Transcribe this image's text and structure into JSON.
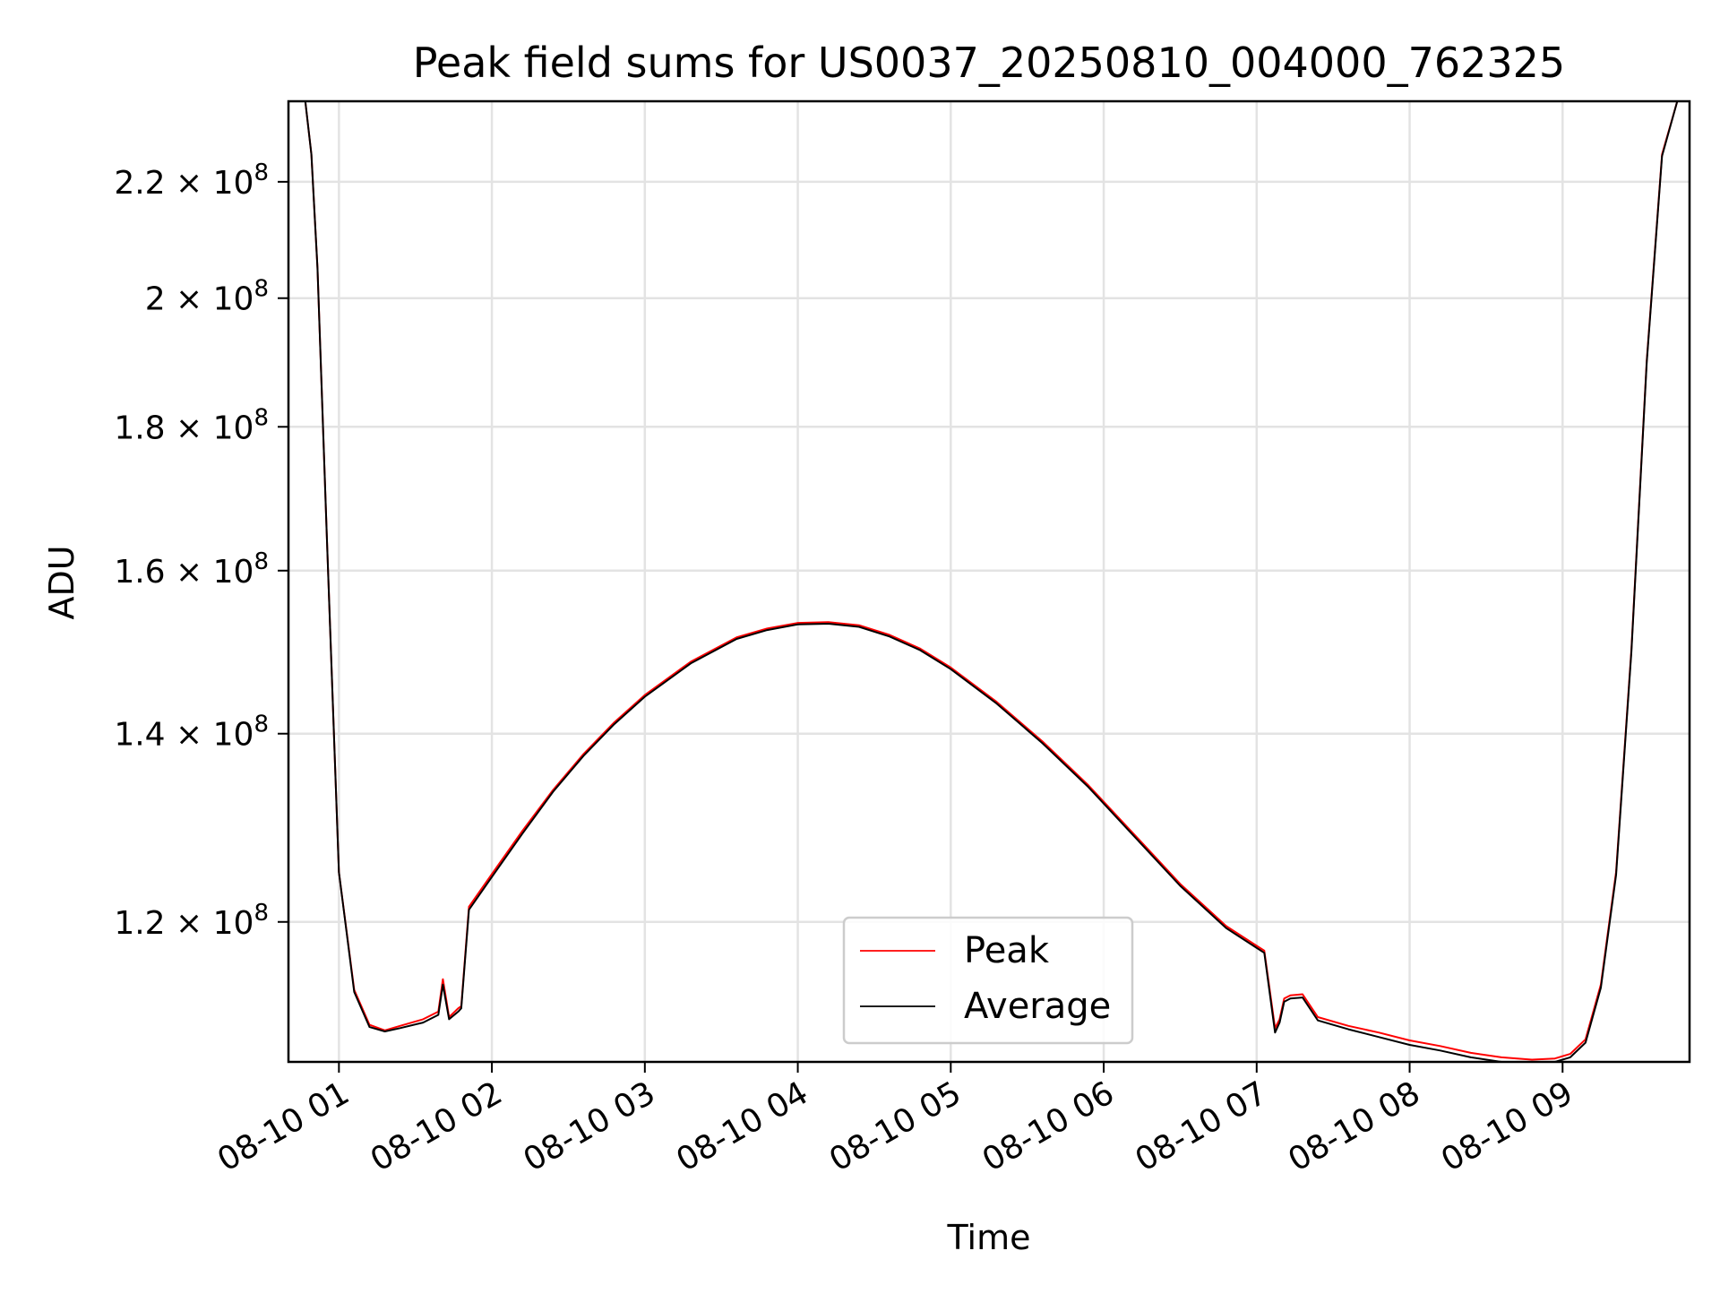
{
  "chart_data": {
    "type": "line",
    "title": "Peak field sums for US0037_20250810_004000_762325",
    "xlabel": "Time",
    "ylabel": "ADU",
    "y_scale": "log",
    "x_tick_labels": [
      "08-10 01",
      "08-10 02",
      "08-10 03",
      "08-10 04",
      "08-10 05",
      "08-10 06",
      "08-10 07",
      "08-10 08",
      "08-10 09"
    ],
    "x_tick_hours": [
      1,
      2,
      3,
      4,
      5,
      6,
      7,
      8,
      9
    ],
    "y_ticks": [
      {
        "value": 120000000,
        "mantissa": "1.2",
        "exp": "8"
      },
      {
        "value": 140000000,
        "mantissa": "1.4",
        "exp": "8"
      },
      {
        "value": 160000000,
        "mantissa": "1.6",
        "exp": "8"
      },
      {
        "value": 180000000,
        "mantissa": "1.8",
        "exp": "8"
      },
      {
        "value": 200000000,
        "mantissa": "2",
        "exp": "8"
      },
      {
        "value": 220000000,
        "mantissa": "2.2",
        "exp": "8"
      }
    ],
    "times_symbol": "×",
    "tick_base": "10",
    "xlim_hours": [
      0.67,
      9.83
    ],
    "ylim": [
      107000000,
      235000000
    ],
    "grid": true,
    "legend_position": "lower center",
    "series": [
      {
        "name": "Peak",
        "color": "#ff0000",
        "x_hours": [
          0.67,
          0.78,
          0.82,
          0.86,
          0.92,
          1.0,
          1.1,
          1.2,
          1.3,
          1.4,
          1.55,
          1.65,
          1.68,
          1.72,
          1.78,
          1.8,
          1.85,
          2.0,
          2.2,
          2.4,
          2.6,
          2.8,
          3.0,
          3.3,
          3.6,
          3.8,
          4.0,
          4.2,
          4.4,
          4.6,
          4.8,
          5.0,
          5.3,
          5.6,
          5.9,
          6.2,
          6.5,
          6.8,
          7.05,
          7.12,
          7.15,
          7.18,
          7.22,
          7.3,
          7.4,
          7.6,
          7.8,
          8.0,
          8.2,
          8.4,
          8.6,
          8.8,
          8.95,
          9.05,
          9.15,
          9.25,
          9.35,
          9.45,
          9.55,
          9.65,
          9.75,
          9.83
        ],
        "y": [
          235000000,
          235000000,
          225000000,
          205000000,
          165000000,
          125000000,
          113500000,
          110300000,
          109800000,
          110200000,
          110800000,
          111500000,
          114500000,
          111000000,
          111800000,
          112000000,
          121500000,
          124800000,
          129300000,
          133700000,
          137700000,
          141300000,
          144500000,
          148500000,
          151500000,
          152600000,
          153300000,
          153400000,
          153000000,
          151800000,
          150100000,
          147800000,
          143700000,
          139100000,
          134200000,
          128900000,
          123800000,
          119600000,
          117200000,
          110000000,
          110800000,
          112700000,
          113000000,
          113100000,
          111000000,
          110200000,
          109600000,
          108900000,
          108400000,
          107800000,
          107400000,
          107200000,
          107300000,
          107700000,
          109000000,
          114000000,
          125000000,
          150000000,
          190000000,
          225000000,
          235000000,
          235000000
        ]
      },
      {
        "name": "Average",
        "color": "#000000",
        "x_hours": [
          0.67,
          0.78,
          0.82,
          0.86,
          0.92,
          1.0,
          1.1,
          1.2,
          1.3,
          1.4,
          1.55,
          1.65,
          1.68,
          1.72,
          1.78,
          1.8,
          1.85,
          2.0,
          2.2,
          2.4,
          2.6,
          2.8,
          3.0,
          3.3,
          3.6,
          3.8,
          4.0,
          4.2,
          4.4,
          4.6,
          4.8,
          5.0,
          5.3,
          5.6,
          5.9,
          6.2,
          6.5,
          6.8,
          7.05,
          7.12,
          7.15,
          7.18,
          7.22,
          7.3,
          7.4,
          7.6,
          7.8,
          8.0,
          8.2,
          8.4,
          8.6,
          8.8,
          8.95,
          9.05,
          9.15,
          9.25,
          9.35,
          9.45,
          9.55,
          9.65,
          9.75,
          9.83
        ],
        "y": [
          235000000,
          235000000,
          225000000,
          205000000,
          165000000,
          125000000,
          113300000,
          110100000,
          109700000,
          110000000,
          110500000,
          111200000,
          114000000,
          110800000,
          111500000,
          111800000,
          121200000,
          124500000,
          129000000,
          133500000,
          137500000,
          141100000,
          144300000,
          148300000,
          151300000,
          152400000,
          153100000,
          153200000,
          152800000,
          151600000,
          149900000,
          147600000,
          143500000,
          138900000,
          134000000,
          128700000,
          123600000,
          119400000,
          117000000,
          109600000,
          110500000,
          112400000,
          112700000,
          112800000,
          110700000,
          109900000,
          109200000,
          108500000,
          108000000,
          107400000,
          107000000,
          106900000,
          107000000,
          107400000,
          108700000,
          113700000,
          124700000,
          149700000,
          189700000,
          224700000,
          235000000,
          235000000
        ]
      }
    ]
  }
}
